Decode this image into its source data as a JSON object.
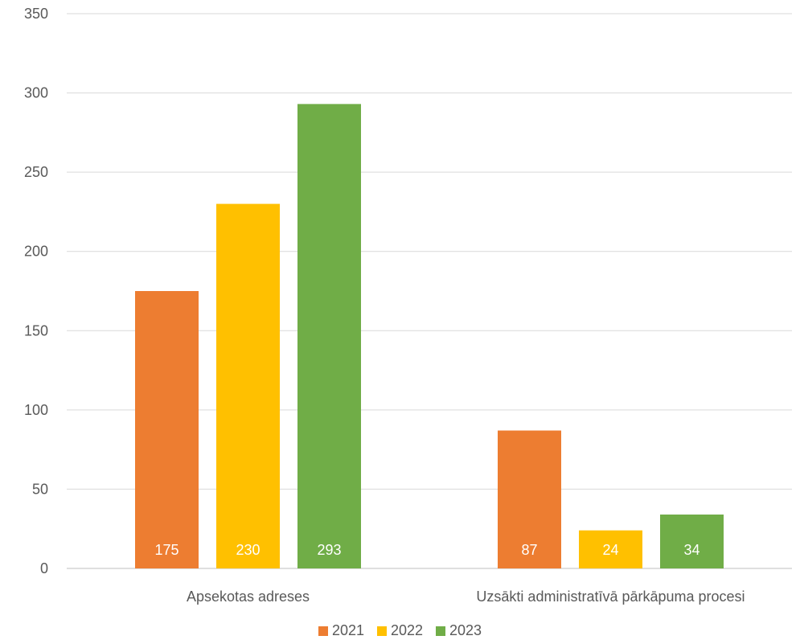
{
  "chart_data": {
    "type": "bar",
    "title": "",
    "xlabel": "",
    "ylabel": "",
    "categories": [
      "Apsekotas adreses",
      "Uzsākti administratīvā pārkāpuma procesi"
    ],
    "series": [
      {
        "name": "2021",
        "values": [
          175,
          87
        ],
        "color": "#ED7D31"
      },
      {
        "name": "2022",
        "values": [
          230,
          24
        ],
        "color": "#FFC000"
      },
      {
        "name": "2023",
        "values": [
          293,
          34
        ],
        "color": "#70AD47"
      }
    ],
    "ylim": [
      0,
      350
    ],
    "yticks": [
      0,
      50,
      100,
      150,
      200,
      250,
      300,
      350
    ],
    "grid": true,
    "legend_position": "bottom",
    "data_labels": true
  }
}
